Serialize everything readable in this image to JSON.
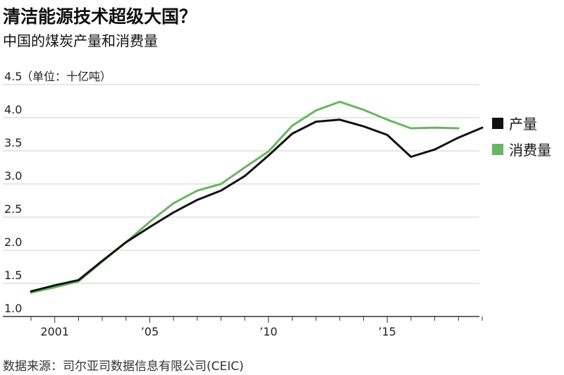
{
  "header": {
    "title": "清洁能源技术超级大国？",
    "subtitle": "中国的煤炭产量和消费量"
  },
  "footer": {
    "source": "数据来源：司尔亚司数据信息有限公司(CEIC)"
  },
  "chart_data": {
    "type": "line",
    "title": "清洁能源技术超级大国？",
    "subtitle": "中国的煤炭产量和消费量",
    "ylabel": "（单位：十亿吨）",
    "ylim": [
      1.0,
      4.5
    ],
    "yticks": [
      1.0,
      1.5,
      2.0,
      2.5,
      3.0,
      3.5,
      4.0,
      4.5
    ],
    "ytick_labels": [
      "1.0",
      "1.5",
      "2.0",
      "2.5",
      "3.0",
      "3.5",
      "4.0",
      "4.5"
    ],
    "xlim": [
      2000,
      2019
    ],
    "xtick_labels": [
      {
        "x": 2001,
        "label": "2001"
      },
      {
        "x": 2005,
        "label": "’05"
      },
      {
        "x": 2010,
        "label": "’10"
      },
      {
        "x": 2015,
        "label": "’15"
      }
    ],
    "grid": true,
    "legend_position": "right",
    "series": [
      {
        "name": "产量",
        "color": "#111111",
        "x": [
          2000,
          2001,
          2002,
          2003,
          2004,
          2005,
          2006,
          2007,
          2008,
          2009,
          2010,
          2011,
          2012,
          2013,
          2014,
          2015,
          2016,
          2017,
          2018,
          2019
        ],
        "values": [
          1.38,
          1.47,
          1.55,
          1.84,
          2.12,
          2.35,
          2.57,
          2.76,
          2.9,
          3.12,
          3.43,
          3.76,
          3.94,
          3.97,
          3.87,
          3.74,
          3.41,
          3.52,
          3.7,
          3.85
        ]
      },
      {
        "name": "消费量",
        "color": "#6ab562",
        "x": [
          2000,
          2001,
          2002,
          2003,
          2004,
          2005,
          2006,
          2007,
          2008,
          2009,
          2010,
          2011,
          2012,
          2013,
          2014,
          2015,
          2016,
          2017,
          2018
        ],
        "values": [
          1.36,
          1.44,
          1.53,
          1.83,
          2.12,
          2.43,
          2.71,
          2.9,
          3.0,
          3.25,
          3.49,
          3.88,
          4.11,
          4.24,
          4.12,
          3.97,
          3.84,
          3.85,
          3.84
        ]
      }
    ]
  }
}
